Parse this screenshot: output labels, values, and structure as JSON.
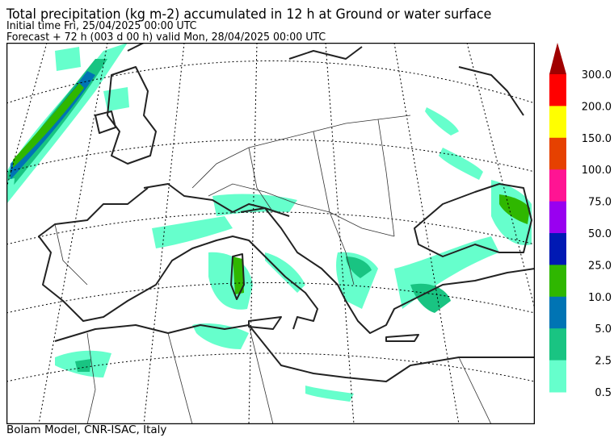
{
  "header": {
    "title": "Total precipitation (kg m-2) accumulated in  12 h at Ground or water surface",
    "initial_time": "Initial time  Fri, 25/04/2025  00:00 UTC",
    "forecast": "Forecast  +  72 h  (003 d 00 h)  valid Mon, 28/04/2025 00:00 UTC"
  },
  "colorbar": {
    "labels": [
      "300.0",
      "200.0",
      "150.0",
      "100.0",
      "75.0",
      "50.0",
      "25.0",
      "10.0",
      "5.0",
      "2.5",
      "0.5"
    ],
    "colors": [
      "#ff0000",
      "#ffff00",
      "#e64100",
      "#ff1493",
      "#9900f0",
      "#0019b4",
      "#2fb700",
      "#0074b4",
      "#19c482",
      "#66ffcc"
    ],
    "overflow_color": "#a00000"
  },
  "footer": "Bolam Model, CNR-ISAC, Italy"
}
